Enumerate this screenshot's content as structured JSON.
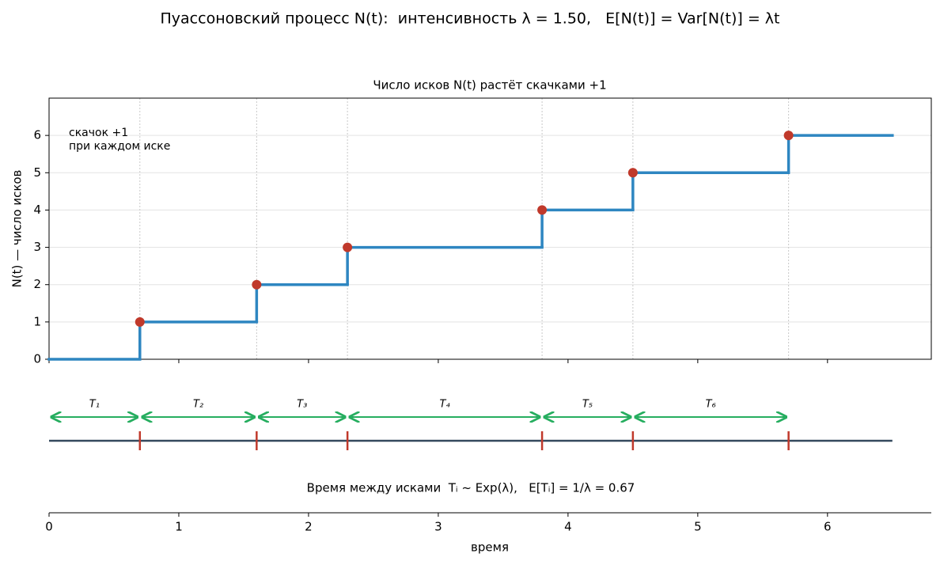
{
  "chart_data": {
    "type": "step",
    "title": "Пуассоновский процесс N(t):  интенсивность λ = 1.50,   E[N(t)] = Var[N(t)] = λt",
    "subtitle": "Число исков N(t) растёт скачками +1",
    "ylabel": "N(t) — число исков",
    "xlabel": "время",
    "annotation": [
      "скачок +1",
      "при каждом иске"
    ],
    "x": [
      0,
      0.7,
      1.6,
      2.3,
      3.8,
      4.5,
      5.7,
      6.5
    ],
    "values": [
      0,
      1,
      2,
      3,
      4,
      5,
      6,
      6
    ],
    "color": "#2e86c1",
    "jump_color": "#c0392b",
    "interval_labels": [
      "T₁",
      "T₂",
      "T₃",
      "T₄",
      "T₅",
      "T₆"
    ],
    "interval_color": "#27ae60",
    "interval_note": "Время между исками  Tᵢ ~ Exp(λ),   E[Tᵢ] = 1/λ = 0.67",
    "xlim": [
      0,
      6.8
    ],
    "xticks": [
      0,
      1,
      2,
      3,
      4,
      5,
      6
    ],
    "ylim": [
      0,
      7
    ],
    "yticks": [
      0,
      1,
      2,
      3,
      4,
      5,
      6
    ],
    "grid": true
  }
}
